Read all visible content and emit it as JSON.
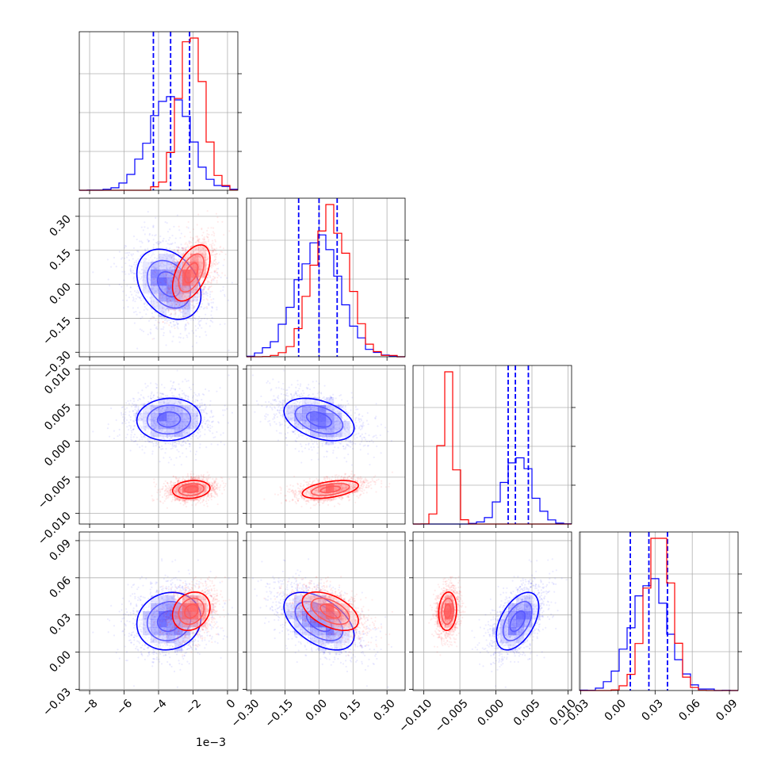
{
  "colors": {
    "blue": "#0000ff",
    "red": "#ff0000",
    "grid": "#b0b0b0"
  },
  "x_offset_label": "1e−3",
  "chart_data": {
    "type": "corner",
    "grid": true,
    "dimensions": [
      {
        "index": 0,
        "range": [
          -8.6,
          0.6
        ],
        "ticks": [
          -8,
          -6,
          -4,
          -2,
          0
        ],
        "tick_labels": [
          "−8",
          "−6",
          "−4",
          "−2",
          "0"
        ],
        "scale_note": "1e−3"
      },
      {
        "index": 1,
        "range": [
          -0.32,
          0.38
        ],
        "ticks": [
          -0.3,
          -0.15,
          0.0,
          0.15,
          0.3
        ],
        "tick_labels": [
          "−0.30",
          "−0.15",
          "0.00",
          "0.15",
          "0.30"
        ]
      },
      {
        "index": 2,
        "range": [
          -0.0115,
          0.0105
        ],
        "ticks": [
          -0.01,
          -0.005,
          0.0,
          0.005,
          0.01
        ],
        "tick_labels": [
          "−0.010",
          "−0.005",
          "0.000",
          "0.005",
          "0.010"
        ]
      },
      {
        "index": 3,
        "range": [
          -0.031,
          0.097
        ],
        "ticks": [
          -0.03,
          0.0,
          0.03,
          0.06,
          0.09
        ],
        "tick_labels": [
          "−0.03",
          "0.00",
          "0.03",
          "0.06",
          "0.09"
        ]
      }
    ],
    "series": [
      {
        "color": "blue",
        "mean": [
          -3.4,
          0.0,
          0.003,
          0.025
        ],
        "sd": [
          1.2,
          0.1,
          0.0019,
          0.015
        ],
        "corr": [
          [
            1,
            -0.3,
            0.05,
            0.1
          ],
          [
            -0.3,
            1,
            -0.4,
            -0.5
          ],
          [
            0.05,
            -0.4,
            1,
            0.5
          ],
          [
            0.1,
            -0.5,
            0.5,
            1
          ]
        ],
        "quantiles": [
          [
            -4.3,
            -3.3,
            -2.2
          ],
          [
            -0.09,
            0.0,
            0.08
          ],
          [
            0.0017,
            0.0027,
            0.0045
          ],
          [
            0.01,
            0.025,
            0.04
          ]
        ]
      },
      {
        "color": "red",
        "mean": [
          -2.1,
          0.05,
          -0.0067,
          0.033
        ],
        "sd": [
          0.7,
          0.08,
          0.0008,
          0.01
        ],
        "corr": [
          [
            1,
            0.5,
            0.15,
            0.2
          ],
          [
            0.5,
            1,
            0.45,
            -0.5
          ],
          [
            0.15,
            0.45,
            1,
            0.1
          ],
          [
            0.2,
            -0.5,
            0.1,
            1
          ]
        ],
        "quantiles": null
      }
    ],
    "hist": {
      "bins": 20
    }
  }
}
